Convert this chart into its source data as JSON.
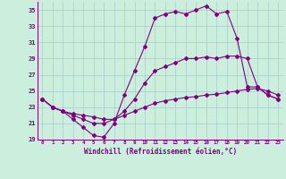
{
  "xlabel": "Windchill (Refroidissement éolien,°C)",
  "background_color": "#cceedd",
  "grid_color": "#aacccc",
  "line_color": "#800080",
  "xlim": [
    -0.5,
    23.5
  ],
  "ylim": [
    19,
    36
  ],
  "yticks": [
    19,
    21,
    23,
    25,
    27,
    29,
    31,
    33,
    35
  ],
  "xticks": [
    0,
    1,
    2,
    3,
    4,
    5,
    6,
    7,
    8,
    9,
    10,
    11,
    12,
    13,
    14,
    15,
    16,
    17,
    18,
    19,
    20,
    21,
    22,
    23
  ],
  "series1_x": [
    0,
    1,
    2,
    3,
    4,
    5,
    6,
    7,
    8,
    9,
    10,
    11,
    12,
    13,
    14,
    15,
    16,
    17,
    18,
    19,
    20,
    21,
    22,
    23
  ],
  "series1_y": [
    24.0,
    23.0,
    22.5,
    21.5,
    20.5,
    19.5,
    19.3,
    21.0,
    24.5,
    27.5,
    30.5,
    34.0,
    34.5,
    34.8,
    34.5,
    35.0,
    35.5,
    34.5,
    34.8,
    31.5,
    25.5,
    25.5,
    24.5,
    24.0
  ],
  "series2_x": [
    0,
    1,
    2,
    3,
    4,
    5,
    6,
    7,
    8,
    9,
    10,
    11,
    12,
    13,
    14,
    15,
    16,
    17,
    18,
    19,
    20,
    21,
    22,
    23
  ],
  "series2_y": [
    24.0,
    23.0,
    22.5,
    22.2,
    22.0,
    21.8,
    21.5,
    21.5,
    22.0,
    22.5,
    23.0,
    23.5,
    23.8,
    24.0,
    24.2,
    24.3,
    24.5,
    24.6,
    24.8,
    25.0,
    25.2,
    25.3,
    25.0,
    24.5
  ],
  "series3_x": [
    0,
    1,
    2,
    3,
    4,
    5,
    6,
    7,
    8,
    9,
    10,
    11,
    12,
    13,
    14,
    15,
    16,
    17,
    18,
    19,
    20,
    21,
    22,
    23
  ],
  "series3_y": [
    24.0,
    23.0,
    22.5,
    22.0,
    21.5,
    21.0,
    21.0,
    21.5,
    22.5,
    24.0,
    26.0,
    27.5,
    28.0,
    28.5,
    29.0,
    29.0,
    29.2,
    29.0,
    29.3,
    29.3,
    29.0,
    25.5,
    24.5,
    24.0
  ]
}
